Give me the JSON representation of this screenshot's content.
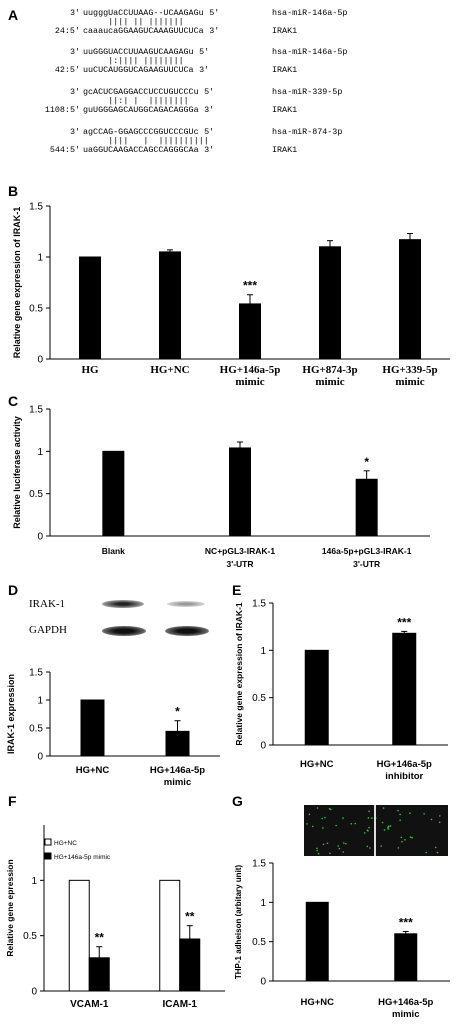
{
  "panels": {
    "A": {
      "letter": "A",
      "alignments": [
        {
          "l1p": "3'",
          "l1s": "uugggUaCCUUAAG--UCAAGAGu",
          "l1e": "5'",
          "l1n": "hsa-miR-146a-5p",
          "bars": "|||| || |||||||",
          "l2p": "24:5'",
          "l2s": "caaaucaGGAAGUCAAAGUUCUCa",
          "l2e": "3'",
          "l2n": "IRAK1"
        },
        {
          "l1p": "3'",
          "l1s": "uuGGGUACCUUAAGUCAAGAGu",
          "l1e": "5'",
          "l1n": "hsa-miR-146a-5p",
          "bars": "|:|||| ||||||||",
          "l2p": "42:5'",
          "l2s": "uuCUCAUGGUCAGAAGUUCUCa",
          "l2e": "3'",
          "l2n": "IRAK1"
        },
        {
          "l1p": "3'",
          "l1s": "gcACUCGAGGACCUCCUGUCCCu",
          "l1e": "5'",
          "l1n": "hsa-miR-339-5p",
          "bars": "||:| |  ||||||||",
          "l2p": "1108:5'",
          "l2s": "guUGGGAGCAUGGCAGACAGGGa",
          "l2e": "3'",
          "l2n": "IRAK1"
        },
        {
          "l1p": "3'",
          "l1s": "agCCAG-GGAGCCCGGUCCCGUc",
          "l1e": "5'",
          "l1n": "hsa-miR-874-3p",
          "bars": "||||   |  ||||||||||",
          "l2p": "544:5'",
          "l2s": "uaGGUCAAGACCAGCCAGGGCAa",
          "l2e": "3'",
          "l2n": "IRAK1"
        }
      ]
    },
    "B": {
      "letter": "B"
    },
    "C": {
      "letter": "C"
    },
    "D": {
      "letter": "D",
      "blot_labels": [
        "IRAK-1",
        "GAPDH"
      ]
    },
    "E": {
      "letter": "E"
    },
    "F": {
      "letter": "F"
    },
    "G": {
      "letter": "G"
    }
  },
  "chart_data": [
    {
      "id": "B",
      "type": "bar",
      "ylabel": "Relative gene expression of IRAK-1",
      "ylim": [
        0,
        1.5
      ],
      "yticks": [
        "0",
        "0.5",
        "1",
        "1.5"
      ],
      "categories": [
        [
          "HG"
        ],
        [
          "HG+NC"
        ],
        [
          "HG+146a-5p",
          "mimic"
        ],
        [
          "HG+874-3p",
          "mimic"
        ],
        [
          "HG+339-5p",
          "mimic"
        ]
      ],
      "values": [
        1.0,
        1.05,
        0.54,
        1.1,
        1.17
      ],
      "errors": [
        0,
        0.02,
        0.09,
        0.06,
        0.06
      ],
      "significance": [
        "",
        "",
        "***",
        "",
        ""
      ],
      "grid": false
    },
    {
      "id": "C",
      "type": "bar",
      "ylabel": "Relative luciferase activity",
      "ylim": [
        0,
        1.5
      ],
      "yticks": [
        "0",
        "0.5",
        "1",
        "1.5"
      ],
      "categories": [
        [
          "Blank"
        ],
        [
          "NC+pGL3-IRAK-1",
          "3'-UTR"
        ],
        [
          "146a-5p+pGL3-IRAK-1",
          "3'-UTR"
        ]
      ],
      "values": [
        1.0,
        1.04,
        0.67
      ],
      "errors": [
        0,
        0.07,
        0.1
      ],
      "significance": [
        "",
        "",
        "*"
      ],
      "grid": false
    },
    {
      "id": "D",
      "type": "bar",
      "ylabel": "IRAK-1 expression",
      "ylim": [
        0,
        1.5
      ],
      "yticks": [
        "0",
        "0.5",
        "1",
        "1.5"
      ],
      "categories": [
        [
          "HG+NC"
        ],
        [
          "HG+146a-5p",
          "mimic"
        ]
      ],
      "values": [
        1.0,
        0.44
      ],
      "errors": [
        0,
        0.19
      ],
      "significance": [
        "",
        "*"
      ],
      "grid": false
    },
    {
      "id": "E",
      "type": "bar",
      "ylabel": "Relative gene expression of IRAK-1",
      "ylim": [
        0,
        1.5
      ],
      "yticks": [
        "0",
        "0.5",
        "1",
        "1.5"
      ],
      "categories": [
        [
          "HG+NC"
        ],
        [
          "HG+146a-5p",
          "inhibitor"
        ]
      ],
      "values": [
        1.0,
        1.18
      ],
      "errors": [
        0,
        0.02
      ],
      "significance": [
        "",
        "***"
      ],
      "grid": false
    },
    {
      "id": "F",
      "type": "bar",
      "ylabel": "Relative gene epression",
      "ylim": [
        0,
        1.5
      ],
      "yticks": [
        "0",
        "0.5",
        "1"
      ],
      "categories": [
        [
          "VCAM-1"
        ],
        [
          "ICAM-1"
        ]
      ],
      "series": [
        {
          "name": "HG+NC",
          "values": [
            1.0,
            1.0
          ],
          "errors": [
            0,
            0
          ],
          "significance": [
            "",
            ""
          ],
          "fill": "#ffffff"
        },
        {
          "name": "HG+146a-5p mimic",
          "values": [
            0.3,
            0.47
          ],
          "errors": [
            0.1,
            0.12
          ],
          "significance": [
            "**",
            "**"
          ],
          "fill": "#000000"
        }
      ],
      "legend": "top-left",
      "grid": false
    },
    {
      "id": "G",
      "type": "bar",
      "ylabel": "THP-1 adheison (arbitary unit)",
      "ylim": [
        0,
        1.5
      ],
      "yticks": [
        "0",
        "0.5",
        "1",
        "1.5"
      ],
      "categories": [
        [
          "HG+NC"
        ],
        [
          "HG+146a-5p",
          "mimic"
        ]
      ],
      "values": [
        1.0,
        0.6
      ],
      "errors": [
        0,
        0.03
      ],
      "significance": [
        "",
        "***"
      ],
      "grid": false
    }
  ]
}
